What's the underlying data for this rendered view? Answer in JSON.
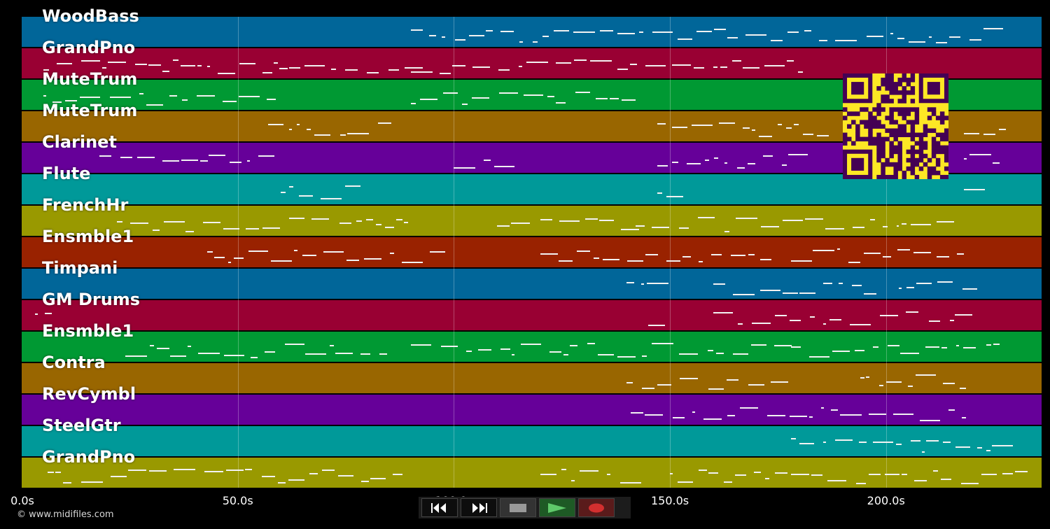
{
  "tracks": [
    {
      "name": "WoodBass",
      "color": "#016699"
    },
    {
      "name": "GrandPno",
      "color": "#990033"
    },
    {
      "name": "MuteTrum",
      "color": "#009933"
    },
    {
      "name": "MuteTrum",
      "color": "#996600"
    },
    {
      "name": "Clarinet",
      "color": "#660099"
    },
    {
      "name": "Flute",
      "color": "#009999"
    },
    {
      "name": "FrenchHr",
      "color": "#999900"
    },
    {
      "name": "Ensmble1",
      "color": "#992200"
    },
    {
      "name": "Timpani",
      "color": "#016699"
    },
    {
      "name": "GM Drums",
      "color": "#990033"
    },
    {
      "name": "Ensmble1",
      "color": "#009933"
    },
    {
      "name": "Contra",
      "color": "#996600"
    },
    {
      "name": "RevCymbl",
      "color": "#660099"
    },
    {
      "name": "SteelGtr",
      "color": "#009999"
    },
    {
      "name": "GrandPno",
      "color": "#999900"
    }
  ],
  "time_axis": {
    "ticks": [
      "0.0s",
      "50.0s",
      "100.0s",
      "150.0s",
      "200.0s"
    ],
    "tick_values": [
      0,
      50,
      100,
      150,
      200
    ],
    "max_seconds": 236
  },
  "copyright": "© www.midifiles.com",
  "transport": [
    {
      "name": "rewind-button",
      "icon": "rewind-icon"
    },
    {
      "name": "fast-forward-button",
      "icon": "fast-forward-icon"
    },
    {
      "name": "stop-button",
      "icon": "stop-icon"
    },
    {
      "name": "play-button",
      "icon": "play-icon"
    },
    {
      "name": "record-button",
      "icon": "record-icon"
    }
  ],
  "qr_code": {
    "icon": "qr-code-icon",
    "color": "#fde725",
    "fg": "#440154"
  }
}
